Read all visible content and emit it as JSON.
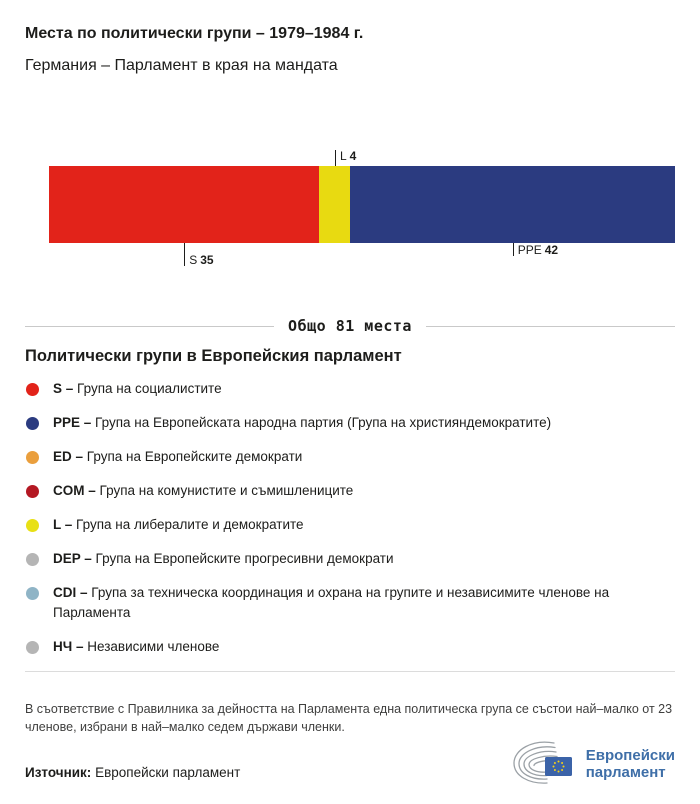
{
  "header": {
    "title": "Места по политически групи – 1979–1984 г.",
    "subtitle": "Германия – Парламент в края на мандата"
  },
  "chart_data": {
    "type": "bar",
    "orientation": "horizontal_stacked",
    "title": "Места по политически групи – 1979–1984 г.",
    "subtitle": "Германия – Парламент в края на мандата",
    "total_seats": 81,
    "total_label": "Общо 81 места",
    "categories": [
      "S",
      "L",
      "PPE"
    ],
    "values": [
      35,
      4,
      42
    ],
    "segments": [
      {
        "code": "S",
        "seats": 35,
        "color": "#e2231a",
        "label_position": "below"
      },
      {
        "code": "L",
        "seats": 4,
        "color": "#e8da11",
        "label_position": "above"
      },
      {
        "code": "PPE",
        "seats": 42,
        "color": "#2b3b80",
        "label_position": "below"
      }
    ]
  },
  "legend": {
    "heading": "Политически групи в Европейския парламент",
    "items": [
      {
        "code": "S –",
        "label": "Група на социалистите",
        "color": "#e2231a"
      },
      {
        "code": "PPE –",
        "label": "Група на Европейската народна партия (Група на християндемократите)",
        "color": "#2b3b80"
      },
      {
        "code": "ED –",
        "label": "Група на Европейските демократи",
        "color": "#ea9f3d"
      },
      {
        "code": "COM –",
        "label": "Група на комунистите и съмишлениците",
        "color": "#b41823"
      },
      {
        "code": "L –",
        "label": "Група на либералите и демократите",
        "color": "#e8e015"
      },
      {
        "code": "DEP –",
        "label": "Група на Европейските прогресивни демократи",
        "color": "#b5b5b5"
      },
      {
        "code": "CDI –",
        "label": "Група за техническа координация и охрана на групите и независимите членове на Парламента",
        "color": "#8fb4c6"
      },
      {
        "code": "НЧ –",
        "label": "Независими членове",
        "color": "#b5b5b5"
      }
    ]
  },
  "footnote": "В съответствие с Правилника за дейността на Парламента една политическа група се състои най–малко от 23 членове, избрани в най–малко седем държави членки.",
  "source": {
    "label": "Източник:",
    "value": "Европейски парламент"
  },
  "logo": {
    "line1": "Европейски",
    "line2": "парламент"
  }
}
